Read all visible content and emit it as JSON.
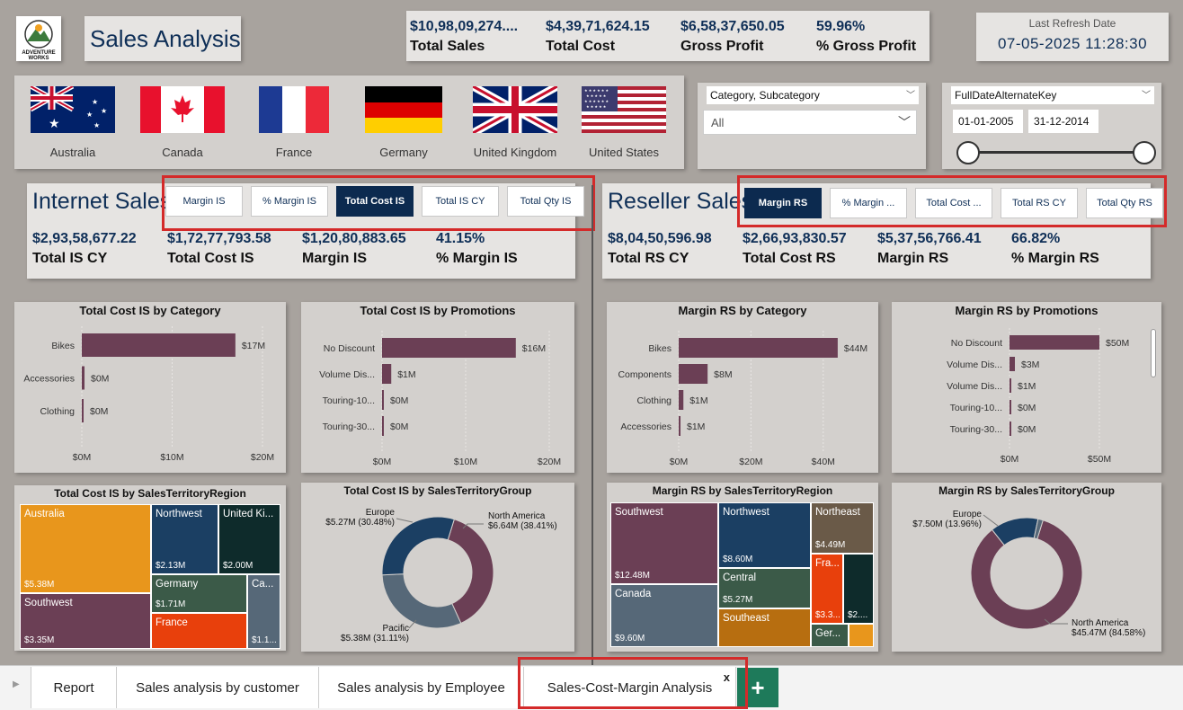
{
  "header": {
    "logo_text": "ADVENTURE WORKS",
    "title": "Sales Analysis",
    "refresh_label": "Last Refresh Date",
    "refresh_value": "07-05-2025 11:28:30"
  },
  "top_kpis": [
    {
      "value": "$10,98,09,274....",
      "label": "Total Sales"
    },
    {
      "value": "$4,39,71,624.15",
      "label": "Total Cost"
    },
    {
      "value": "$6,58,37,650.05",
      "label": "Gross Profit"
    },
    {
      "value": "59.96%",
      "label": "% Gross Profit"
    }
  ],
  "countries": [
    "Australia",
    "Canada",
    "France",
    "Germany",
    "United Kingdom",
    "United States"
  ],
  "filters": {
    "category_label": "Category, Subcategory",
    "category_value": "All",
    "date_label": "FullDateAlternateKey",
    "date_start": "01-01-2005",
    "date_end": "31-12-2014"
  },
  "internet": {
    "title": "Internet Sales",
    "buttons": [
      "Margin IS",
      "% Margin IS",
      "Total Cost IS",
      "Total IS CY",
      "Total Qty IS"
    ],
    "selected_button": "Total Cost IS",
    "kpis": [
      {
        "value": "$2,93,58,677.22",
        "label": "Total IS CY"
      },
      {
        "value": "$1,72,77,793.58",
        "label": "Total Cost IS"
      },
      {
        "value": "$1,20,80,883.65",
        "label": "Margin IS"
      },
      {
        "value": "41.15%",
        "label": "% Margin IS"
      }
    ]
  },
  "reseller": {
    "title": "Reseller Sales",
    "buttons": [
      "Margin RS",
      "% Margin ...",
      "Total Cost ...",
      "Total RS CY",
      "Total Qty RS"
    ],
    "selected_button": "Margin RS",
    "kpis": [
      {
        "value": "$8,04,50,596.98",
        "label": "Total RS CY"
      },
      {
        "value": "$2,66,93,830.57",
        "label": "Total Cost RS"
      },
      {
        "value": "$5,37,56,766.41",
        "label": "Margin RS"
      },
      {
        "value": "66.82%",
        "label": "% Margin RS"
      }
    ]
  },
  "colors": {
    "bar": "#6b3f55",
    "navy": "#0f2f57",
    "selected_button": "#0c2a4f",
    "highlight_border": "#d42a2a",
    "australia": "#e8961c",
    "northwest": "#1b3f63",
    "united_kingdom": "#0e2b2b",
    "germany": "#3b5a48",
    "canada": "#566878",
    "france": "#e8400c",
    "northeast": "#6a5a48",
    "southeast": "#b76e10"
  },
  "chart_data": [
    {
      "type": "bar",
      "title": "Total Cost IS by Category",
      "categories": [
        "Bikes",
        "Accessories",
        "Clothing"
      ],
      "values": [
        17,
        0.3,
        0.2
      ],
      "data_labels": [
        "$17M",
        "$0M",
        "$0M"
      ],
      "xticks": [
        "$0M",
        "$10M",
        "$20M"
      ],
      "xlim": [
        0,
        20
      ]
    },
    {
      "type": "bar",
      "title": "Total Cost IS by Promotions",
      "categories": [
        "No Discount",
        "Volume Dis...",
        "Touring-10...",
        "Touring-30..."
      ],
      "values": [
        16,
        1.1,
        0.2,
        0.2
      ],
      "data_labels": [
        "$16M",
        "$1M",
        "$0M",
        "$0M"
      ],
      "xticks": [
        "$0M",
        "$10M",
        "$20M"
      ],
      "xlim": [
        0,
        20
      ]
    },
    {
      "type": "bar",
      "title": "Margin RS by Category",
      "categories": [
        "Bikes",
        "Components",
        "Clothing",
        "Accessories"
      ],
      "values": [
        44,
        8,
        1.3,
        0.5
      ],
      "data_labels": [
        "$44M",
        "$8M",
        "$1M",
        "$1M"
      ],
      "xticks": [
        "$0M",
        "$20M",
        "$40M"
      ],
      "xlim": [
        0,
        50
      ]
    },
    {
      "type": "bar",
      "title": "Margin RS by Promotions",
      "categories": [
        "No Discount",
        "Volume Dis...",
        "Volume Dis...",
        "Touring-10...",
        "Touring-30..."
      ],
      "values": [
        50,
        3,
        1,
        0.3,
        0.3
      ],
      "data_labels": [
        "$50M",
        "$3M",
        "$1M",
        "$0M",
        "$0M"
      ],
      "xticks": [
        "$0M",
        "$50M"
      ],
      "xlim": [
        0,
        60
      ]
    },
    {
      "type": "heatmap",
      "title": "Total Cost IS by SalesTerritoryRegion",
      "cells": [
        {
          "name": "Australia",
          "value": "$5.38M"
        },
        {
          "name": "Southwest",
          "value": "$3.35M"
        },
        {
          "name": "Northwest",
          "value": "$2.13M"
        },
        {
          "name": "United Ki...",
          "value": "$2.00M"
        },
        {
          "name": "Germany",
          "value": "$1.71M"
        },
        {
          "name": "Ca...",
          "value": "$1.1..."
        },
        {
          "name": "France",
          "value": ""
        }
      ]
    },
    {
      "type": "pie",
      "title": "Total Cost IS by SalesTerritoryGroup",
      "slices": [
        {
          "name": "North America",
          "value": 38.41,
          "label": "$6.64M (38.41%)"
        },
        {
          "name": "Pacific",
          "value": 31.11,
          "label": "$5.38M (31.11%)"
        },
        {
          "name": "Europe",
          "value": 30.48,
          "label": "$5.27M (30.48%)"
        }
      ]
    },
    {
      "type": "heatmap",
      "title": "Margin RS by SalesTerritoryRegion",
      "cells": [
        {
          "name": "Southwest",
          "value": "$12.48M"
        },
        {
          "name": "Canada",
          "value": "$9.60M"
        },
        {
          "name": "Northwest",
          "value": "$8.60M"
        },
        {
          "name": "Central",
          "value": "$5.27M"
        },
        {
          "name": "Northeast",
          "value": "$4.49M"
        },
        {
          "name": "Southeast",
          "value": ""
        },
        {
          "name": "Fra...",
          "value": "$3.3..."
        },
        {
          "name": "",
          "value": "$2...."
        },
        {
          "name": "Ger...",
          "value": ""
        }
      ]
    },
    {
      "type": "pie",
      "title": "Margin RS by SalesTerritoryGroup",
      "slices": [
        {
          "name": "North America",
          "value": 84.58,
          "label": "$45.47M (84.58%)"
        },
        {
          "name": "Europe",
          "value": 13.96,
          "label": "$7.50M (13.96%)"
        },
        {
          "name": "",
          "value": 1.46,
          "label": ""
        }
      ]
    }
  ],
  "tabs": {
    "items": [
      "Report",
      "Sales analysis by customer",
      "Sales analysis by Employee",
      "Sales-Cost-Margin Analysis"
    ],
    "active": "Sales-Cost-Margin Analysis",
    "close_glyph": "x",
    "add_glyph": "+"
  }
}
